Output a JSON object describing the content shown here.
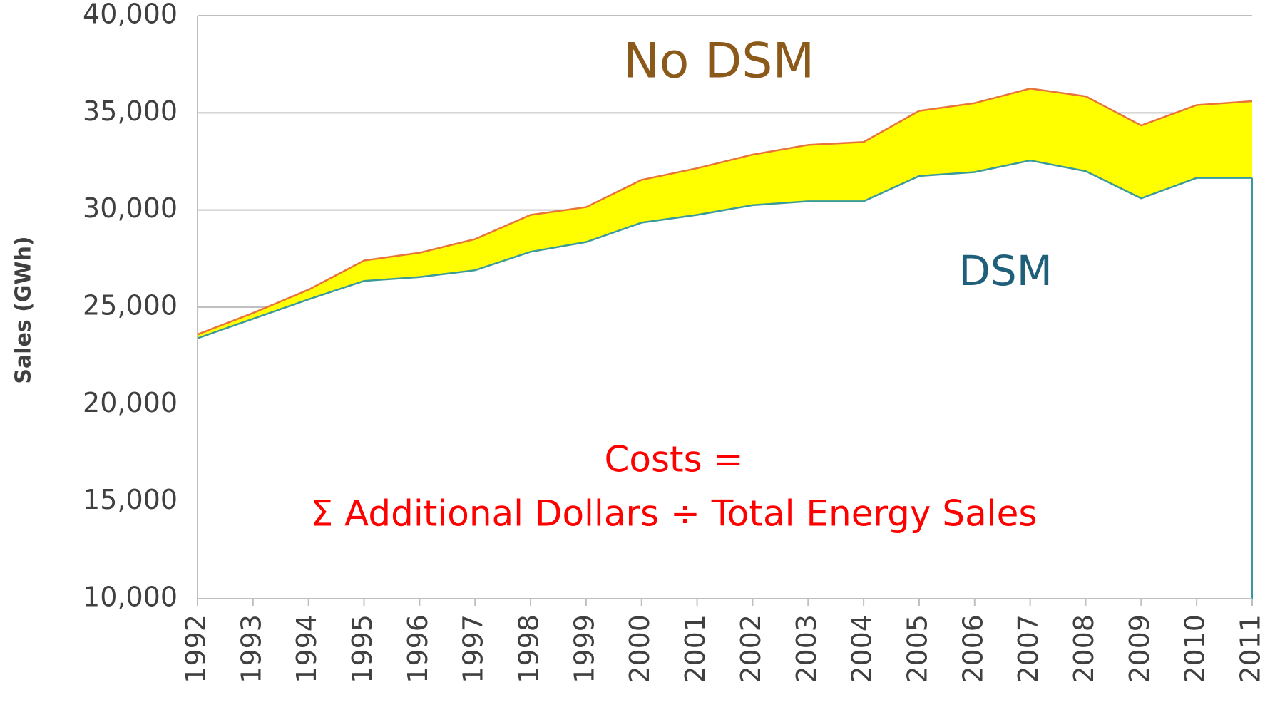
{
  "chart_data": {
    "type": "area",
    "y_label": "Sales (GWh)",
    "annotations": [
      "Costs =",
      "Σ Additional Dollars ÷ Total Energy Sales"
    ],
    "categories": [
      "1992",
      "1993",
      "1994",
      "1995",
      "1996",
      "1997",
      "1998",
      "1999",
      "2000",
      "2001",
      "2002",
      "2003",
      "2004",
      "2005",
      "2006",
      "2007",
      "2008",
      "2009",
      "2010",
      "2011"
    ],
    "series": [
      {
        "name": "No DSM",
        "color": "#ffff00",
        "line_color": "#e8743b",
        "label_color": "#8b5a1a",
        "values": [
          23600,
          24700,
          25900,
          27400,
          27800,
          28500,
          29750,
          30150,
          31550,
          32150,
          32850,
          33350,
          33500,
          35100,
          35500,
          36250,
          35850,
          34350,
          35400,
          35600
        ]
      },
      {
        "name": "DSM",
        "color": "#ffffff",
        "line_color": "#3a9a9a",
        "label_color": "#1f5f7a",
        "values": [
          23400,
          24400,
          25400,
          26350,
          26550,
          26900,
          27850,
          28350,
          29350,
          29750,
          30250,
          30450,
          30450,
          31750,
          31950,
          32550,
          32000,
          30600,
          31650,
          31650
        ]
      }
    ],
    "ylim": [
      10000,
      40000
    ],
    "yticks": [
      {
        "value": 10000,
        "label": "10,000"
      },
      {
        "value": 15000,
        "label": "15,000"
      },
      {
        "value": 20000,
        "label": "20,000"
      },
      {
        "value": 25000,
        "label": "25,000"
      },
      {
        "value": 30000,
        "label": "30,000"
      },
      {
        "value": 35000,
        "label": "35,000"
      },
      {
        "value": 40000,
        "label": "40,000"
      }
    ],
    "grid": true
  }
}
